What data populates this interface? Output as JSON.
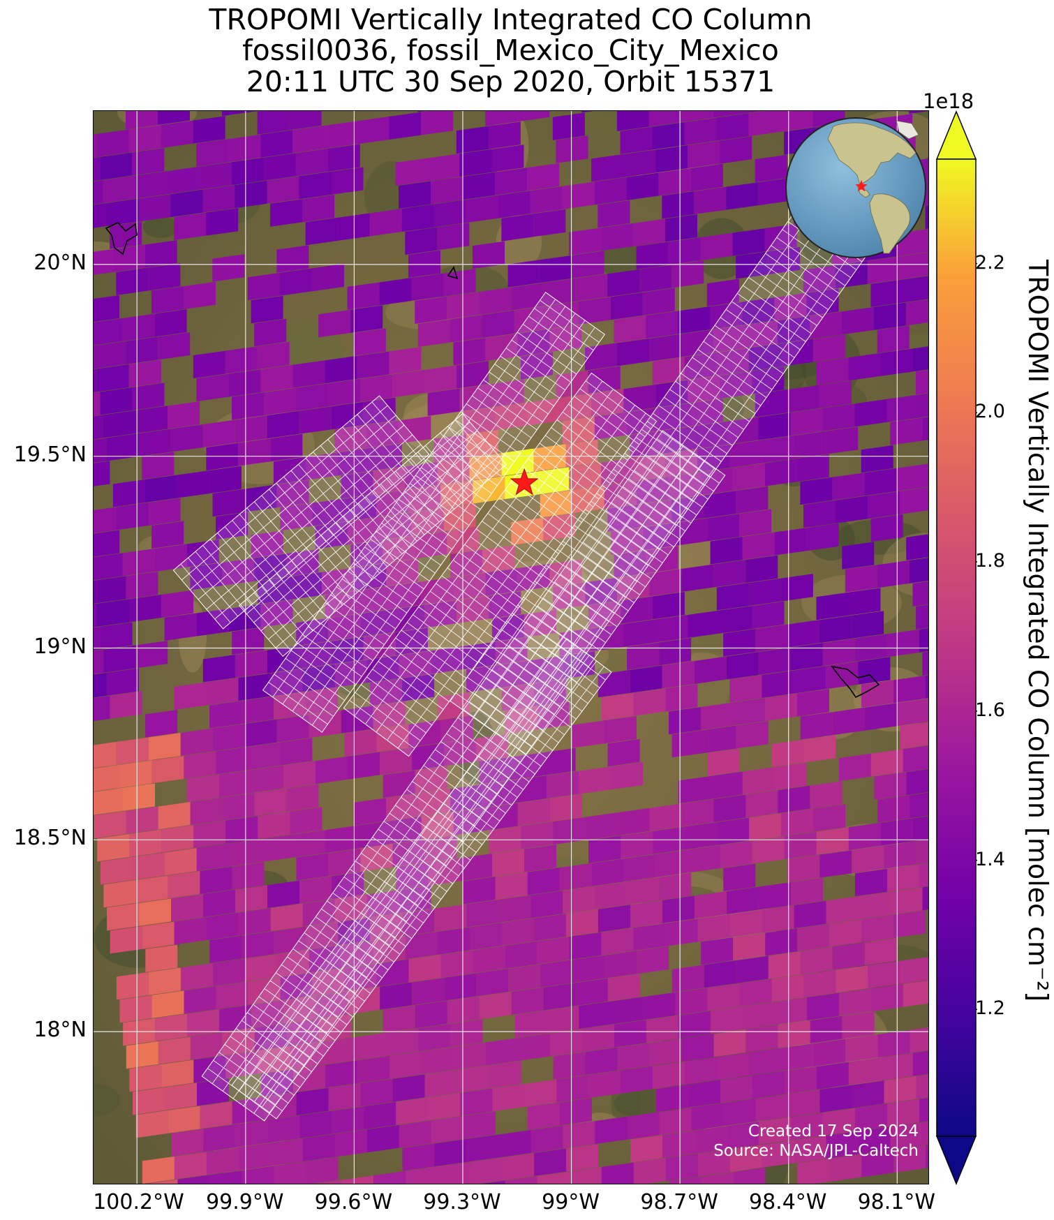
{
  "figure": {
    "title_lines": [
      "TROPOMI Vertically Integrated CO Column",
      "fossil0036, fossil_Mexico_City_Mexico",
      "20:11 UTC 30 Sep 2020, Orbit 15371"
    ],
    "credit_lines": [
      "Created 17 Sep 2024",
      "Source: NASA/JPL-Caltech"
    ]
  },
  "map": {
    "lon_range": [
      -100.32,
      -98.01
    ],
    "lat_range": [
      17.6,
      20.4
    ],
    "x_ticks": [
      {
        "lon": -100.2,
        "label": "100.2°W"
      },
      {
        "lon": -99.9,
        "label": "99.9°W"
      },
      {
        "lon": -99.6,
        "label": "99.6°W"
      },
      {
        "lon": -99.3,
        "label": "99.3°W"
      },
      {
        "lon": -99.0,
        "label": "99°W"
      },
      {
        "lon": -98.7,
        "label": "98.7°W"
      },
      {
        "lon": -98.4,
        "label": "98.4°W"
      },
      {
        "lon": -98.1,
        "label": "98.1°W"
      }
    ],
    "y_ticks": [
      {
        "lat": 20.0,
        "label": "20°N"
      },
      {
        "lat": 19.5,
        "label": "19.5°N"
      },
      {
        "lat": 19.0,
        "label": "19°N"
      },
      {
        "lat": 18.5,
        "label": "18.5°N"
      },
      {
        "lat": 18.0,
        "label": "18°N"
      }
    ],
    "gridlines": true,
    "gridline_color": "#e8e8e8",
    "background": "satellite imagery",
    "site_marker": {
      "lon": -99.13,
      "lat": 19.43,
      "symbol": "star",
      "color": "#ff1a1a"
    },
    "target_swaths_color": "#ffffff",
    "inset_globe": {
      "position": "top-right",
      "ocean_color": "#6fa3c8",
      "land_color": "#c9c48f",
      "marker_color": "#ff1a1a"
    }
  },
  "colorbar": {
    "colormap": "plasma",
    "min": 1.03,
    "max": 2.34,
    "extend": "both",
    "exponent_label": "1e18",
    "label": "TROPOMI Vertically Integrated CO Column [molec cm⁻²]",
    "ticks": [
      {
        "value": 1.2,
        "label": "1.2"
      },
      {
        "value": 1.4,
        "label": "1.4"
      },
      {
        "value": 1.6,
        "label": "1.6"
      },
      {
        "value": 1.8,
        "label": "1.8"
      },
      {
        "value": 2.0,
        "label": "2.0"
      },
      {
        "value": 2.2,
        "label": "2.2"
      }
    ]
  }
}
